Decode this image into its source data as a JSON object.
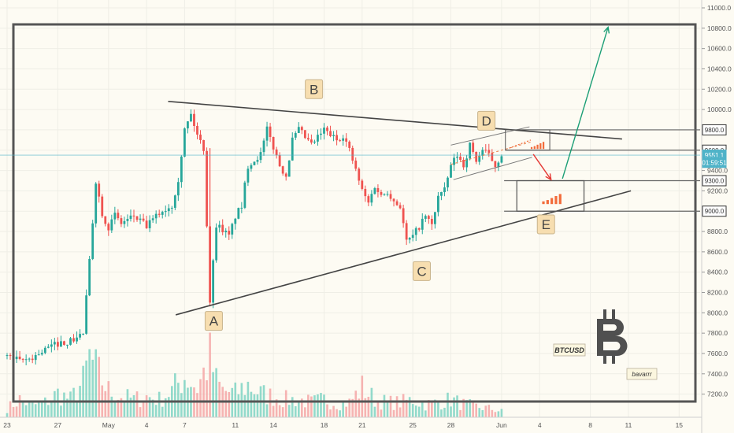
{
  "chart_data": {
    "type": "candlestick",
    "symbol": "BTCUSD",
    "author": "bavarrr",
    "bitcoin_logo": "bitcoin-icon",
    "ylim": [
      7050,
      11000
    ],
    "y_ticks": [
      7200,
      7400,
      7600,
      7800,
      8000,
      8200,
      8400,
      8600,
      8800,
      9000,
      9200,
      9400,
      9600,
      9800,
      10000,
      10200,
      10400,
      10600,
      10800,
      11000
    ],
    "y_tick_labels": [
      "7200.0",
      "7400.0",
      "7600.0",
      "7800.0",
      "8000.0",
      "8200.0",
      "8400.0",
      "8600.0",
      "8800.0",
      "9000.0",
      "9200.0",
      "9400.0",
      "9600.0",
      "9800.0",
      "10000.0",
      "10200.0",
      "10400.0",
      "10600.0",
      "10800.0",
      "11000.0"
    ],
    "x_ticks": [
      {
        "label": "23",
        "day": 0
      },
      {
        "label": "27",
        "day": 4
      },
      {
        "label": "May",
        "day": 8
      },
      {
        "label": "4",
        "day": 11
      },
      {
        "label": "7",
        "day": 14
      },
      {
        "label": "11",
        "day": 18
      },
      {
        "label": "14",
        "day": 21
      },
      {
        "label": "18",
        "day": 25
      },
      {
        "label": "21",
        "day": 28
      },
      {
        "label": "25",
        "day": 32
      },
      {
        "label": "28",
        "day": 35
      },
      {
        "label": "Jun",
        "day": 39
      },
      {
        "label": "4",
        "day": 42
      },
      {
        "label": "8",
        "day": 46
      },
      {
        "label": "11",
        "day": 49
      },
      {
        "label": "15",
        "day": 53
      }
    ],
    "price_tags": [
      {
        "label": "9800.0",
        "value": 9800,
        "kind": "line"
      },
      {
        "label": "9600.0",
        "value": 9600,
        "kind": "line"
      },
      {
        "label": "9551.1",
        "value": 9551,
        "kind": "current"
      },
      {
        "label": "01:59:51",
        "value": 9480,
        "kind": "timer"
      },
      {
        "label": "9300.0",
        "value": 9300,
        "kind": "line"
      },
      {
        "label": "9000.0",
        "value": 9000,
        "kind": "line"
      }
    ],
    "horizontal_levels": [
      9800,
      9600,
      9300,
      9000
    ],
    "current_price": 9551.1,
    "countdown": "01:59:51",
    "wave_labels": [
      {
        "label": "A",
        "day": 16.3,
        "value": 7920
      },
      {
        "label": "B",
        "day": 24.2,
        "value": 10200
      },
      {
        "label": "C",
        "day": 32.7,
        "value": 8410
      },
      {
        "label": "D",
        "day": 37.8,
        "value": 9890
      },
      {
        "label": "E",
        "day": 42.5,
        "value": 8870
      }
    ],
    "close_path": [
      [
        0,
        7580
      ],
      [
        1,
        7520
      ],
      [
        2,
        7560
      ],
      [
        3,
        7640
      ],
      [
        4,
        7700
      ],
      [
        5,
        7720
      ],
      [
        6,
        7800
      ],
      [
        6.5,
        8500
      ],
      [
        7,
        9300
      ],
      [
        7.5,
        8980
      ],
      [
        8,
        8840
      ],
      [
        8.5,
        8960
      ],
      [
        9,
        8880
      ],
      [
        10,
        8950
      ],
      [
        11,
        8850
      ],
      [
        12,
        8980
      ],
      [
        13,
        9060
      ],
      [
        13.5,
        9320
      ],
      [
        14,
        9800
      ],
      [
        14.5,
        9950
      ],
      [
        15,
        9750
      ],
      [
        15.5,
        9620
      ],
      [
        16,
        8120
      ],
      [
        16.5,
        8870
      ],
      [
        17,
        8820
      ],
      [
        17.5,
        8750
      ],
      [
        18,
        8950
      ],
      [
        18.5,
        9050
      ],
      [
        19,
        9450
      ],
      [
        20,
        9560
      ],
      [
        20.5,
        9800
      ],
      [
        21,
        9630
      ],
      [
        21.5,
        9450
      ],
      [
        22,
        9350
      ],
      [
        22.5,
        9700
      ],
      [
        23,
        9800
      ],
      [
        24,
        9650
      ],
      [
        25,
        9800
      ],
      [
        26,
        9700
      ],
      [
        26.5,
        9750
      ],
      [
        27,
        9600
      ],
      [
        27.5,
        9400
      ],
      [
        28,
        9200
      ],
      [
        28.5,
        9080
      ],
      [
        29,
        9250
      ],
      [
        29.5,
        9150
      ],
      [
        30,
        9200
      ],
      [
        30.5,
        9100
      ],
      [
        31,
        9050
      ],
      [
        31.5,
        8700
      ],
      [
        32,
        8750
      ],
      [
        33,
        8950
      ],
      [
        33.5,
        8860
      ],
      [
        34,
        9150
      ],
      [
        34.5,
        9200
      ],
      [
        35,
        9450
      ],
      [
        35.5,
        9550
      ],
      [
        36,
        9450
      ],
      [
        36.5,
        9650
      ],
      [
        37,
        9500
      ],
      [
        37.5,
        9600
      ],
      [
        38,
        9550
      ],
      [
        38.5,
        9450
      ],
      [
        39,
        9560
      ]
    ],
    "volume_path": [
      [
        0,
        15
      ],
      [
        1,
        30
      ],
      [
        2,
        20
      ],
      [
        3,
        25
      ],
      [
        4,
        40
      ],
      [
        5,
        30
      ],
      [
        6,
        60
      ],
      [
        6.5,
        100
      ],
      [
        7,
        80
      ],
      [
        8,
        45
      ],
      [
        9,
        35
      ],
      [
        10,
        30
      ],
      [
        11,
        35
      ],
      [
        12,
        30
      ],
      [
        13,
        45
      ],
      [
        14,
        70
      ],
      [
        15,
        50
      ],
      [
        16,
        100
      ],
      [
        16.5,
        60
      ],
      [
        17,
        45
      ],
      [
        18,
        40
      ],
      [
        19,
        55
      ],
      [
        20,
        40
      ],
      [
        21,
        35
      ],
      [
        22,
        30
      ],
      [
        23,
        30
      ],
      [
        24,
        25
      ],
      [
        25,
        30
      ],
      [
        26,
        25
      ],
      [
        27,
        25
      ],
      [
        28,
        50
      ],
      [
        29,
        30
      ],
      [
        30,
        25
      ],
      [
        31,
        25
      ],
      [
        32,
        30
      ],
      [
        33,
        22
      ],
      [
        34,
        25
      ],
      [
        35,
        30
      ],
      [
        36,
        22
      ],
      [
        37,
        18
      ],
      [
        38,
        15
      ],
      [
        39,
        10
      ]
    ]
  }
}
